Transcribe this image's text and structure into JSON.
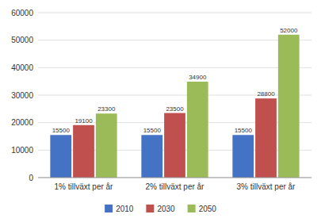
{
  "chart_data": {
    "type": "bar",
    "categories": [
      "1% tillväxt per år",
      "2% tillväxt per år",
      "3% tillväxt per år"
    ],
    "series": [
      {
        "name": "2010",
        "color": "#4472C4",
        "values": [
          15500,
          15500,
          15500
        ]
      },
      {
        "name": "2030",
        "color": "#C0504D",
        "values": [
          19100,
          23500,
          28800
        ]
      },
      {
        "name": "2050",
        "color": "#9BBB59",
        "values": [
          23300,
          34900,
          52000
        ]
      }
    ],
    "ylim": [
      0,
      60000
    ],
    "yticks": [
      0,
      10000,
      20000,
      30000,
      40000,
      50000,
      60000
    ],
    "grid": true,
    "legend": "bottom",
    "data_labels": true
  }
}
